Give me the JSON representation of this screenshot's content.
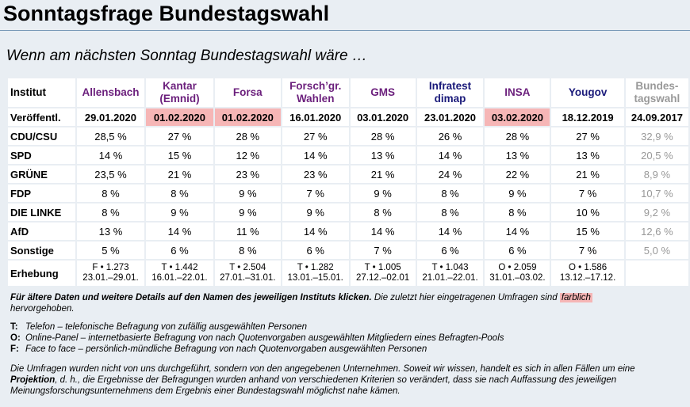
{
  "page": {
    "title": "Sonntagsfrage Bundestagswahl",
    "subtitle": "Wenn am nächsten Sonntag Bundestagswahl wäre …"
  },
  "table": {
    "corner": "Institut",
    "institutes": [
      {
        "line1": "Allensbach",
        "line2": "",
        "color": "#6b1f7c"
      },
      {
        "line1": "Kantar",
        "line2": "(Emnid)",
        "color": "#6b1f7c"
      },
      {
        "line1": "Forsa",
        "line2": "",
        "color": "#6b1f7c"
      },
      {
        "line1": "Forsch’gr.",
        "line2": "Wahlen",
        "color": "#6b1f7c"
      },
      {
        "line1": "GMS",
        "line2": "",
        "color": "#6b1f7c"
      },
      {
        "line1": "Infratest",
        "line2": "dimap",
        "color": "#1a1a7a"
      },
      {
        "line1": "INSA",
        "line2": "",
        "color": "#6b1f7c"
      },
      {
        "line1": "Yougov",
        "line2": "",
        "color": "#1a1a7a"
      },
      {
        "line1": "Bundes-",
        "line2": "tagswahl",
        "color": "#999999"
      }
    ],
    "date_label": "Veröffentl.",
    "dates": [
      "29.01.2020",
      "01.02.2020",
      "01.02.2020",
      "16.01.2020",
      "03.01.2020",
      "23.01.2020",
      "03.02.2020",
      "18.12.2019",
      "24.09.2017"
    ],
    "highlighted_dates": [
      false,
      true,
      true,
      false,
      false,
      false,
      true,
      false,
      false
    ],
    "rows": [
      {
        "party": "CDU/CSU",
        "values": [
          "28,5 %",
          "27 %",
          "28 %",
          "27 %",
          "28 %",
          "26 %",
          "28 %",
          "27 %",
          "32,9 %"
        ]
      },
      {
        "party": "SPD",
        "values": [
          "14 %",
          "15 %",
          "12 %",
          "14 %",
          "13 %",
          "14 %",
          "13 %",
          "13 %",
          "20,5 %"
        ]
      },
      {
        "party": "GRÜNE",
        "values": [
          "23,5 %",
          "21 %",
          "23 %",
          "23 %",
          "21 %",
          "24 %",
          "22 %",
          "21 %",
          "8,9 %"
        ]
      },
      {
        "party": "FDP",
        "values": [
          "8 %",
          "8 %",
          "9 %",
          "7 %",
          "9 %",
          "8 %",
          "9 %",
          "7 %",
          "10,7 %"
        ]
      },
      {
        "party": "DIE LINKE",
        "values": [
          "8 %",
          "9 %",
          "9 %",
          "9 %",
          "8 %",
          "8 %",
          "8 %",
          "10 %",
          "9,2 %"
        ]
      },
      {
        "party": "AfD",
        "values": [
          "13 %",
          "14 %",
          "11 %",
          "14 %",
          "14 %",
          "14 %",
          "14 %",
          "15 %",
          "12,6 %"
        ]
      },
      {
        "party": "Sonstige",
        "values": [
          "5 %",
          "6 %",
          "8 %",
          "6 %",
          "7 %",
          "6 %",
          "6 %",
          "7 %",
          "5,0 %"
        ]
      }
    ],
    "survey_label": "Erhebung",
    "surveys": [
      {
        "line1": "F • 1.273",
        "line2": "23.01.–29.01."
      },
      {
        "line1": "T • 1.442",
        "line2": "16.01.–22.01."
      },
      {
        "line1": "T • 2.504",
        "line2": "27.01.–31.01."
      },
      {
        "line1": "T • 1.282",
        "line2": "13.01.–15.01."
      },
      {
        "line1": "T • 1.005",
        "line2": "27.12.–02.01"
      },
      {
        "line1": "T • 1.043",
        "line2": "21.01.–22.01."
      },
      {
        "line1": "O • 2.059",
        "line2": "31.01.–03.02."
      },
      {
        "line1": "O • 1.586",
        "line2": "13.12.–17.12."
      },
      {
        "line1": "",
        "line2": ""
      }
    ]
  },
  "notes": {
    "p1_bold": "Für ältere Daten und weitere Details auf den Namen des jeweiligen Instituts klicken.",
    "p1_rest": " Die zuletzt hier eingetragenen Umfragen sind ",
    "p1_mark": "farblich",
    "p1_end": "hervorgehoben.",
    "legend": [
      {
        "key": "T:",
        "text": "Telefon – telefonische Befragung von zufällig ausgewählten Personen"
      },
      {
        "key": "O:",
        "text": "Online-Panel – internetbasierte Befragung von nach Quotenvorgaben ausgewählten Mitgliedern eines Befragten-Pools"
      },
      {
        "key": "F:",
        "text": "Face to face – persönlich-mündliche Befragung von nach Quotenvorgaben ausgewählten Personen"
      }
    ],
    "p3_a": "Die Umfragen wurden nicht von uns durchgeführt, sondern von den angegebenen Unternehmen. Soweit wir wissen, handelt es sich in allen Fällen um eine ",
    "p3_bold": "Projektion",
    "p3_b": ", d. h., die Ergebnisse der Befragungen wurden anhand von verschiedenen Kriterien so verändert, dass sie nach Auffassung des jeweiligen Meinungsforschungsunternehmens dem Ergebnis einer Bundestagswahl möglichst nahe kämen."
  }
}
